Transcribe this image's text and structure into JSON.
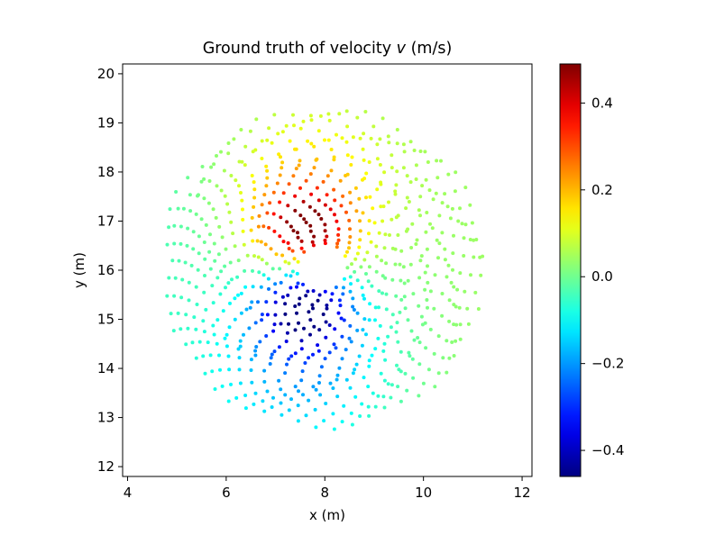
{
  "chart_data": {
    "type": "scatter",
    "title": "Ground truth of velocity ",
    "title_var": "v",
    "title_unit": " (m/s)",
    "xlabel": "x (m)",
    "ylabel": "y (m)",
    "xlim": [
      3.9,
      12.2
    ],
    "ylim": [
      11.8,
      20.2
    ],
    "xticks": [
      4,
      6,
      8,
      10,
      12
    ],
    "yticks": [
      12,
      13,
      14,
      15,
      16,
      17,
      18,
      19,
      20
    ],
    "grid": false,
    "colormap": "jet",
    "colorbar": {
      "vmin": -0.46,
      "vmax": 0.49,
      "ticks": [
        0.4,
        0.2,
        0.0,
        -0.2,
        -0.4
      ],
      "tick_labels": [
        "0.4",
        "0.2",
        "0.0",
        "−0.2",
        "−0.4"
      ]
    },
    "field": {
      "center": [
        7.95,
        16.05
      ],
      "inner_radius": 0.5,
      "outer_radius": 3.2,
      "rings": 24,
      "peak_positive": [
        7.6,
        16.75
      ],
      "peak_negative": [
        7.6,
        15.35
      ],
      "peak_value": 0.47
    }
  }
}
